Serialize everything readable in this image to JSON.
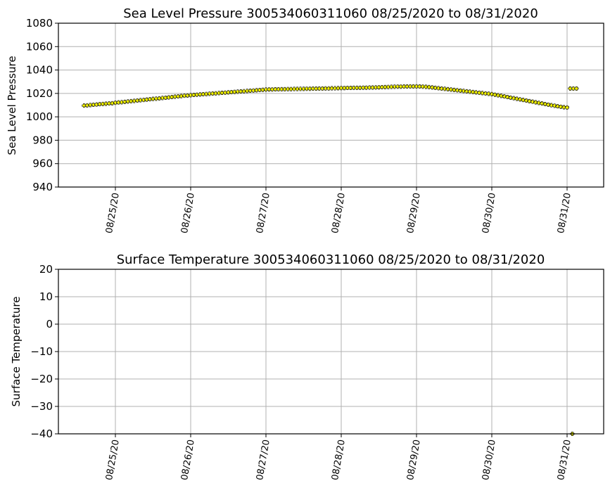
{
  "chart_data": [
    {
      "type": "scatter",
      "title": "Sea Level Pressure 300534060311060  08/25/2020 to 08/31/2020",
      "xlabel": "",
      "ylabel": "Sea Level Pressure",
      "ylim": [
        940,
        1080
      ],
      "yticks": [
        940,
        960,
        980,
        1000,
        1020,
        1040,
        1060,
        1080
      ],
      "xlim_days_from_2020_08_25": [
        -0.757,
        6.486
      ],
      "xtick_labels": [
        "08/25/20",
        "08/26/20",
        "08/27/20",
        "08/28/20",
        "08/29/20",
        "08/30/20",
        "08/31/20"
      ],
      "grid": true,
      "marker_color": "#ffff00",
      "marker_edge": "#000000",
      "series": [
        {
          "name": "Sea Level Pressure",
          "start": "2020-08-24 14:00",
          "step_hours": 1,
          "values": [
            1009.6,
            1009.8,
            1010.1,
            1010.3,
            1010.5,
            1010.8,
            1011.0,
            1011.2,
            1011.4,
            1011.6,
            1012.0,
            1012.3,
            1012.5,
            1012.8,
            1013.1,
            1013.4,
            1013.6,
            1013.9,
            1014.2,
            1014.4,
            1014.7,
            1015.0,
            1015.3,
            1015.5,
            1015.8,
            1016.1,
            1016.3,
            1016.6,
            1016.9,
            1017.2,
            1017.4,
            1017.7,
            1018.0,
            1018.2,
            1018.5,
            1018.7,
            1018.9,
            1019.1,
            1019.3,
            1019.5,
            1019.7,
            1019.9,
            1020.1,
            1020.3,
            1020.5,
            1020.7,
            1020.9,
            1021.1,
            1021.3,
            1021.5,
            1021.7,
            1021.9,
            1022.1,
            1022.3,
            1022.5,
            1022.7,
            1022.9,
            1023.1,
            1023.3,
            1023.4,
            1023.4,
            1023.5,
            1023.5,
            1023.6,
            1023.6,
            1023.7,
            1023.7,
            1023.8,
            1023.8,
            1023.9,
            1023.9,
            1024.0,
            1024.0,
            1024.1,
            1024.1,
            1024.2,
            1024.2,
            1024.3,
            1024.3,
            1024.4,
            1024.4,
            1024.5,
            1024.6,
            1024.6,
            1024.7,
            1024.7,
            1024.8,
            1024.8,
            1024.8,
            1024.9,
            1024.9,
            1025.0,
            1025.0,
            1025.1,
            1025.2,
            1025.3,
            1025.4,
            1025.5,
            1025.6,
            1025.7,
            1025.8,
            1025.8,
            1025.9,
            1025.9,
            1026.0,
            1026.0,
            1026.0,
            1025.9,
            1025.8,
            1025.6,
            1025.4,
            1025.1,
            1024.8,
            1024.5,
            1024.2,
            1023.9,
            1023.6,
            1023.3,
            1023.0,
            1022.7,
            1022.4,
            1022.1,
            1021.8,
            1021.5,
            1021.2,
            1020.9,
            1020.6,
            1020.3,
            1020.0,
            1019.7,
            1019.4,
            1018.9,
            1018.4,
            1017.9,
            1017.4,
            1016.9,
            1016.4,
            1015.9,
            1015.4,
            1014.9,
            1014.4,
            1013.9,
            1013.4,
            1012.9,
            1012.4,
            1011.9,
            1011.4,
            1010.9,
            1010.4,
            1009.9,
            1009.5,
            1009.0,
            1008.6,
            1008.2,
            1008.0,
            1024.2,
            1024.2,
            1024.2
          ]
        }
      ]
    },
    {
      "type": "scatter",
      "title": "Surface Temperature 300534060311060  08/25/2020 to 08/31/2020",
      "xlabel": "",
      "ylabel": "Surface Temperature",
      "ylim": [
        -40,
        20
      ],
      "yticks": [
        -40,
        -30,
        -20,
        -10,
        0,
        10,
        20
      ],
      "ytick_labels": [
        "−40",
        "−30",
        "−20",
        "−10",
        "0",
        "10",
        "20"
      ],
      "xlim_days_from_2020_08_25": [
        -0.757,
        6.486
      ],
      "xtick_labels": [
        "08/25/20",
        "08/26/20",
        "08/27/20",
        "08/28/20",
        "08/29/20",
        "08/30/20",
        "08/31/20"
      ],
      "grid": true,
      "marker_color": "#ffff00",
      "marker_edge": "#000000",
      "series": [
        {
          "name": "Surface Temperature",
          "start": "2020-08-31 01:40",
          "step_hours": 1,
          "values": [
            -40
          ]
        }
      ]
    }
  ]
}
